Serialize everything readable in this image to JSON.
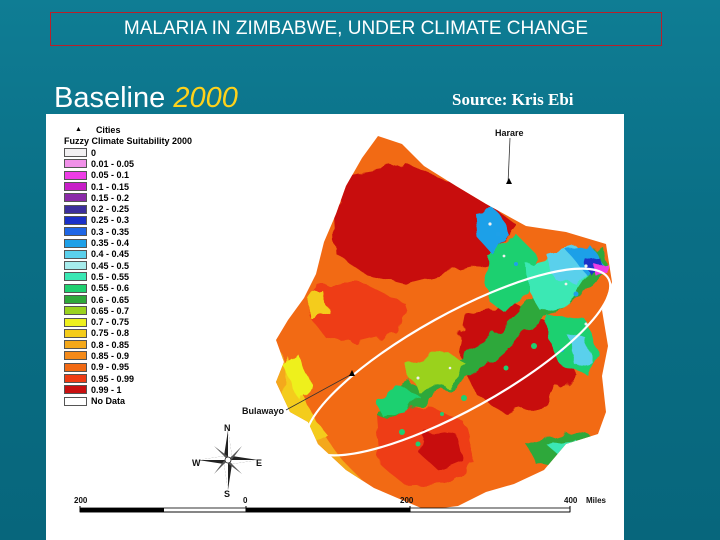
{
  "title": "MALARIA IN ZIMBABWE, UNDER CLIMATE CHANGE",
  "heading": {
    "prefix": "Baseline",
    "year": "2000"
  },
  "source": "Source:  Kris Ebi",
  "map": {
    "legend": {
      "cities_label": "Cities",
      "title": "Fuzzy Climate Suitability 2000",
      "classes": [
        {
          "label": "0",
          "color": "#f2f0f2"
        },
        {
          "label": "0.01 - 0.05",
          "color": "#f090e8"
        },
        {
          "label": "0.05 - 0.1",
          "color": "#ee3ce6"
        },
        {
          "label": "0.1 - 0.15",
          "color": "#c81ec8"
        },
        {
          "label": "0.15 - 0.2",
          "color": "#8a2aa8"
        },
        {
          "label": "0.2 - 0.25",
          "color": "#3b2e9c"
        },
        {
          "label": "0.25 - 0.3",
          "color": "#1a30c8"
        },
        {
          "label": "0.3 - 0.35",
          "color": "#1e66e6"
        },
        {
          "label": "0.35 - 0.4",
          "color": "#1ea0e8"
        },
        {
          "label": "0.4 - 0.45",
          "color": "#5ad0ec"
        },
        {
          "label": "0.45 - 0.5",
          "color": "#a6ecec"
        },
        {
          "label": "0.5 - 0.55",
          "color": "#3ae8b4"
        },
        {
          "label": "0.55 - 0.6",
          "color": "#1ed070"
        },
        {
          "label": "0.6 - 0.65",
          "color": "#2ea83a"
        },
        {
          "label": "0.65 - 0.7",
          "color": "#9ad21e"
        },
        {
          "label": "0.7 - 0.75",
          "color": "#eef01e"
        },
        {
          "label": "0.75 - 0.8",
          "color": "#f4cc1a"
        },
        {
          "label": "0.8 - 0.85",
          "color": "#f4a81a"
        },
        {
          "label": "0.85 - 0.9",
          "color": "#f48a1a"
        },
        {
          "label": "0.9 - 0.95",
          "color": "#f26a14"
        },
        {
          "label": "0.95 - 0.99",
          "color": "#ee3c14"
        },
        {
          "label": "0.99 - 1",
          "color": "#c81010"
        },
        {
          "label": "No Data",
          "color": "#ffffff"
        }
      ]
    },
    "cities": [
      {
        "name": "Harare"
      },
      {
        "name": "Bulawayo"
      }
    ],
    "compass": {
      "n": "N",
      "s": "S",
      "e": "E",
      "w": "W"
    },
    "scale": {
      "ticks": [
        "200",
        "0",
        "200",
        "400"
      ],
      "unit": "Miles"
    }
  }
}
